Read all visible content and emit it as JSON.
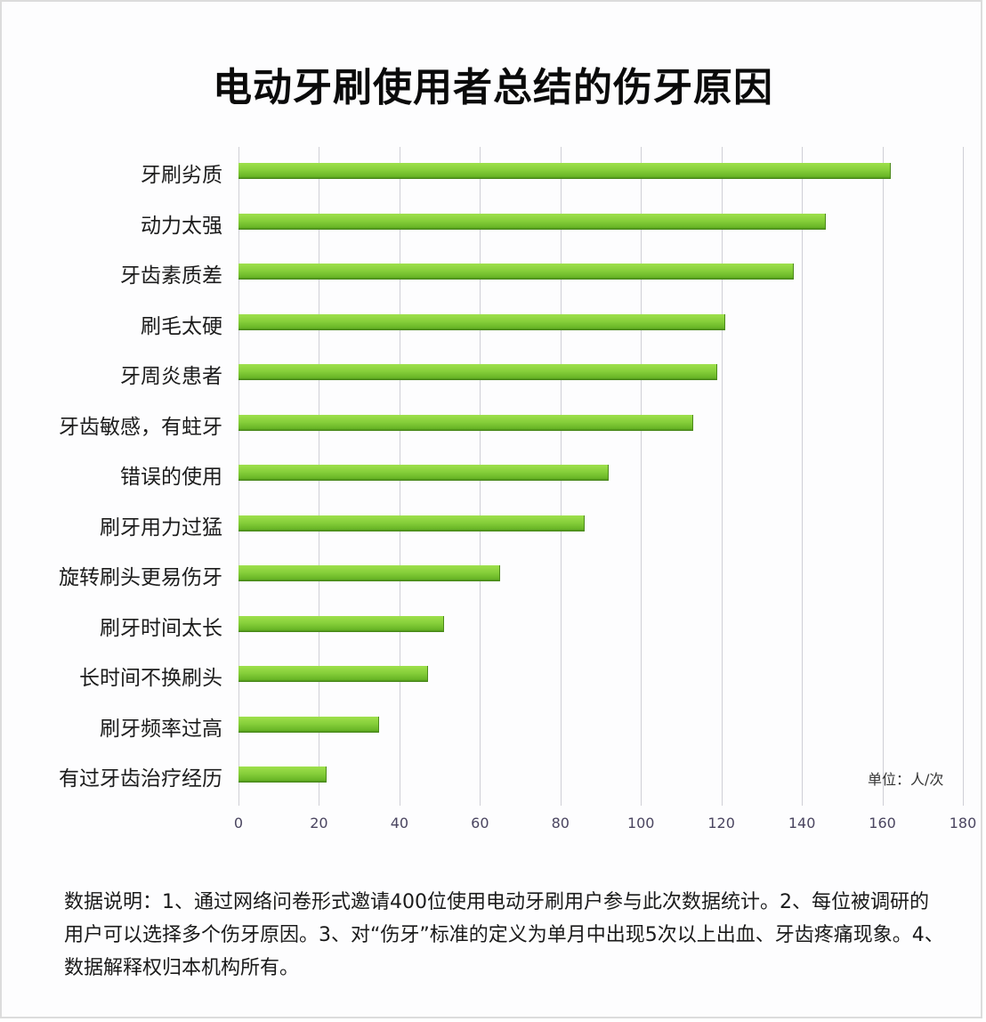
{
  "chart_data": {
    "type": "bar",
    "orientation": "horizontal",
    "title": "电动牙刷使用者总结的伤牙原因",
    "categories": [
      "牙刷劣质",
      "动力太强",
      "牙齿素质差",
      "刷毛太硬",
      "牙周炎患者",
      "牙齿敏感，有蛀牙",
      "错误的使用",
      "刷牙用力过猛",
      "旋转刷头更易伤牙",
      "刷牙时间太长",
      "长时间不换刷头",
      "刷牙频率过高",
      "有过牙齿治疗经历"
    ],
    "values": [
      162,
      146,
      138,
      121,
      119,
      113,
      92,
      86,
      65,
      51,
      47,
      35,
      22
    ],
    "xlabel": "",
    "ylabel": "",
    "xlim": [
      0,
      180
    ],
    "xticks": [
      "0",
      "20",
      "40",
      "60",
      "80",
      "100",
      "120",
      "140",
      "160",
      "180"
    ],
    "grid": true,
    "unit_label": "单位：人/次",
    "bar_color": "#7cc634"
  },
  "note": "数据说明：1、通过网络问卷形式邀请400位使用电动牙刷用户参与此次数据统计。2、每位被调研的用户可以选择多个伤牙原因。3、对“伤牙”标准的定义为单月中出现5次以上出血、牙齿疼痛现象。4、数据解释权归本机构所有。"
}
